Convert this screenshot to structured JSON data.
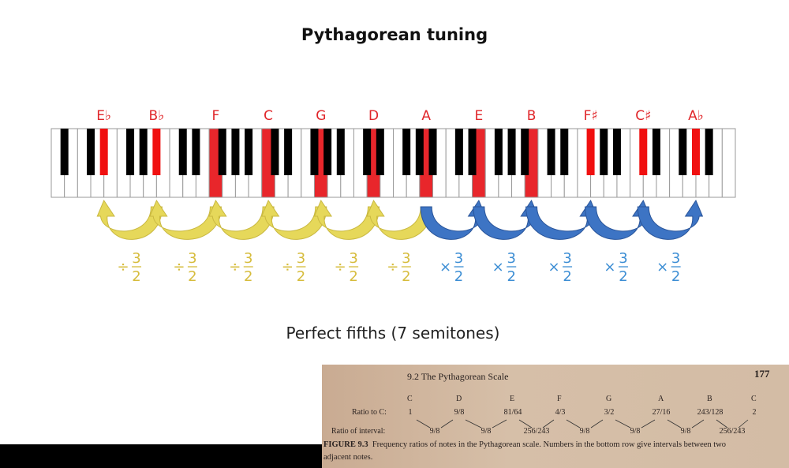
{
  "title": "Pythagorean tuning",
  "subtitle": "Perfect fifths (7 semitones)",
  "colors": {
    "highlight": "#e8262b",
    "down": "#e6d85a",
    "up": "#3d74c4",
    "down_text": "#d6bc3c",
    "up_text": "#3d8ed4"
  },
  "keyboard": {
    "first_note": "A0",
    "white_keys": 52
  },
  "notes": [
    {
      "name": "E♭",
      "midi": 27
    },
    {
      "name": "B♭",
      "midi": 34
    },
    {
      "name": "F",
      "midi": 41
    },
    {
      "name": "C",
      "midi": 48
    },
    {
      "name": "G",
      "midi": 55
    },
    {
      "name": "D",
      "midi": 62
    },
    {
      "name": "A",
      "midi": 69
    },
    {
      "name": "E",
      "midi": 76
    },
    {
      "name": "B",
      "midi": 83
    },
    {
      "name": "F♯",
      "midi": 90
    },
    {
      "name": "C♯",
      "midi": 97
    },
    {
      "name": "A♭",
      "midi": 104
    }
  ],
  "down_op": {
    "symbol": "÷",
    "num": "3",
    "den": "2"
  },
  "up_op": {
    "symbol": "×",
    "num": "3",
    "den": "2"
  },
  "book": {
    "header": "9.2   The Pythagorean Scale",
    "page": "177",
    "row1_label": "Ratio to C:",
    "row2_label": "Ratio of interval:",
    "notes": [
      "C",
      "D",
      "E",
      "F",
      "G",
      "A",
      "B",
      "C"
    ],
    "ratios": [
      "1",
      "9/8",
      "81/64",
      "4/3",
      "3/2",
      "27/16",
      "243/128",
      "2"
    ],
    "intervals": [
      "9/8",
      "9/8",
      "256/243",
      "9/8",
      "9/8",
      "9/8",
      "256/243"
    ],
    "caption_label": "FIGURE 9.3",
    "caption": "Frequency ratios of notes in the Pythagorean scale. Numbers in the bottom row give intervals between two",
    "caption_cont": "adjacent notes."
  }
}
